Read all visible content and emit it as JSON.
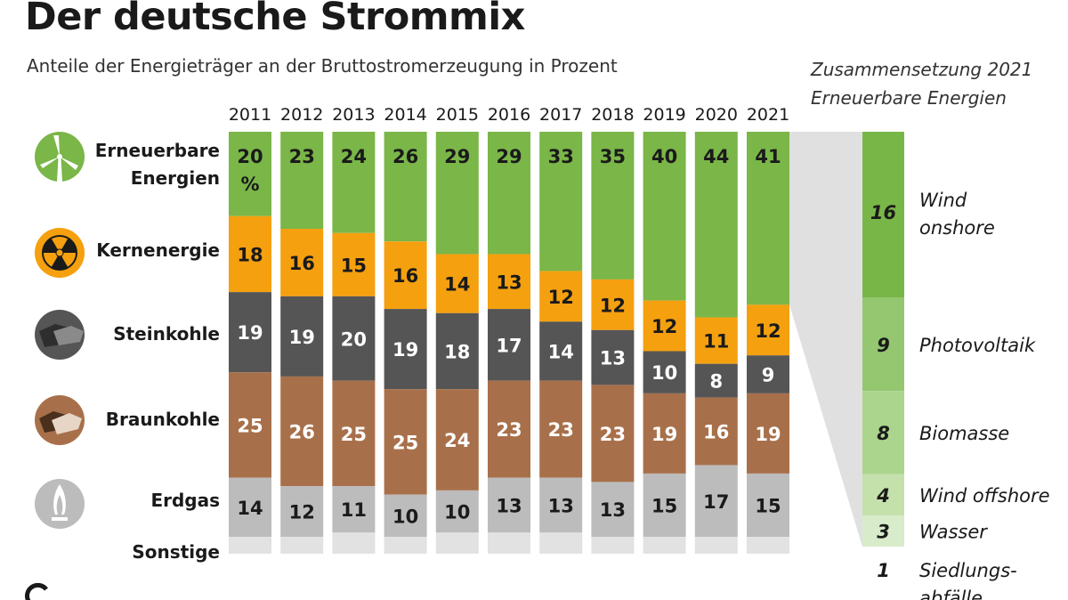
{
  "header": {
    "title": "Der deutsche Strommix",
    "subtitle": "Anteile der Energieträger an der Bruttostromerzeugung in Prozent"
  },
  "side_panel": {
    "title_line1": "Zusammensetzung 2021",
    "title_line2": "Erneuerbare Energien"
  },
  "colors": {
    "renewable": "#7ab648",
    "nuclear": "#f5a00f",
    "hard_coal": "#555555",
    "lignite": "#a8704a",
    "gas": "#bcbcbc",
    "other": "#e2e2e2"
  },
  "chart_data": [
    {
      "type": "bar",
      "stacked": true,
      "normalized": true,
      "title": "Der deutsche Strommix",
      "subtitle": "Anteile der Energieträger an der Bruttostromerzeugung in Prozent",
      "unit": "%",
      "categories": [
        "2011",
        "2012",
        "2013",
        "2014",
        "2015",
        "2016",
        "2017",
        "2018",
        "2019",
        "2020",
        "2021"
      ],
      "series": [
        {
          "key": "renewable",
          "name": "Erneuerbare Energien",
          "label_lines": [
            "Erneuerbare",
            "Energien"
          ],
          "icon": "wind-turbine-icon",
          "color": "#7ab648",
          "values": [
            20,
            23,
            24,
            26,
            29,
            29,
            33,
            35,
            40,
            44,
            41
          ],
          "first_suffix": "%"
        },
        {
          "key": "nuclear",
          "name": "Kernenergie",
          "label_lines": [
            "Kernenergie"
          ],
          "icon": "radiation-icon",
          "color": "#f5a00f",
          "values": [
            18,
            16,
            15,
            16,
            14,
            13,
            12,
            12,
            12,
            11,
            12
          ]
        },
        {
          "key": "hard_coal",
          "name": "Steinkohle",
          "label_lines": [
            "Steinkohle"
          ],
          "icon": "hard-coal-icon",
          "color": "#555555",
          "values": [
            19,
            19,
            20,
            19,
            18,
            17,
            14,
            13,
            10,
            8,
            9
          ]
        },
        {
          "key": "lignite",
          "name": "Braunkohle",
          "label_lines": [
            "Braunkohle"
          ],
          "icon": "lignite-icon",
          "color": "#a8704a",
          "values": [
            25,
            26,
            25,
            25,
            24,
            23,
            23,
            23,
            19,
            16,
            19
          ]
        },
        {
          "key": "gas",
          "name": "Erdgas",
          "label_lines": [
            "Erdgas"
          ],
          "icon": "gas-flame-icon",
          "color": "#bcbcbc",
          "values": [
            14,
            12,
            11,
            10,
            10,
            13,
            13,
            13,
            15,
            17,
            15
          ]
        },
        {
          "key": "other",
          "name": "Sonstige",
          "label_lines": [
            "Sonstige"
          ],
          "icon": "",
          "color": "#e2e2e2",
          "values": [
            4,
            4,
            5,
            4,
            5,
            5,
            5,
            4,
            4,
            4,
            4
          ],
          "show_values": false
        }
      ]
    },
    {
      "type": "bar",
      "stacked": true,
      "title": "Zusammensetzung 2021 Erneuerbare Energien",
      "categories": [
        "Wind onshore",
        "Photovoltaik",
        "Biomasse",
        "Wind offshore",
        "Wasser",
        "Siedlungsabfälle"
      ],
      "label_lines": [
        [
          "Wind",
          "onshore"
        ],
        [
          "Photovoltaik"
        ],
        [
          "Biomasse"
        ],
        [
          "Wind offshore"
        ],
        [
          "Wasser"
        ],
        [
          "Siedlungs-",
          "abfälle"
        ]
      ],
      "values": [
        16,
        9,
        8,
        4,
        3,
        1
      ],
      "colors": [
        "#79b648",
        "#94c770",
        "#abd48d",
        "#c4e1ac",
        "#d8ebca",
        "#eaf4e2"
      ]
    }
  ]
}
